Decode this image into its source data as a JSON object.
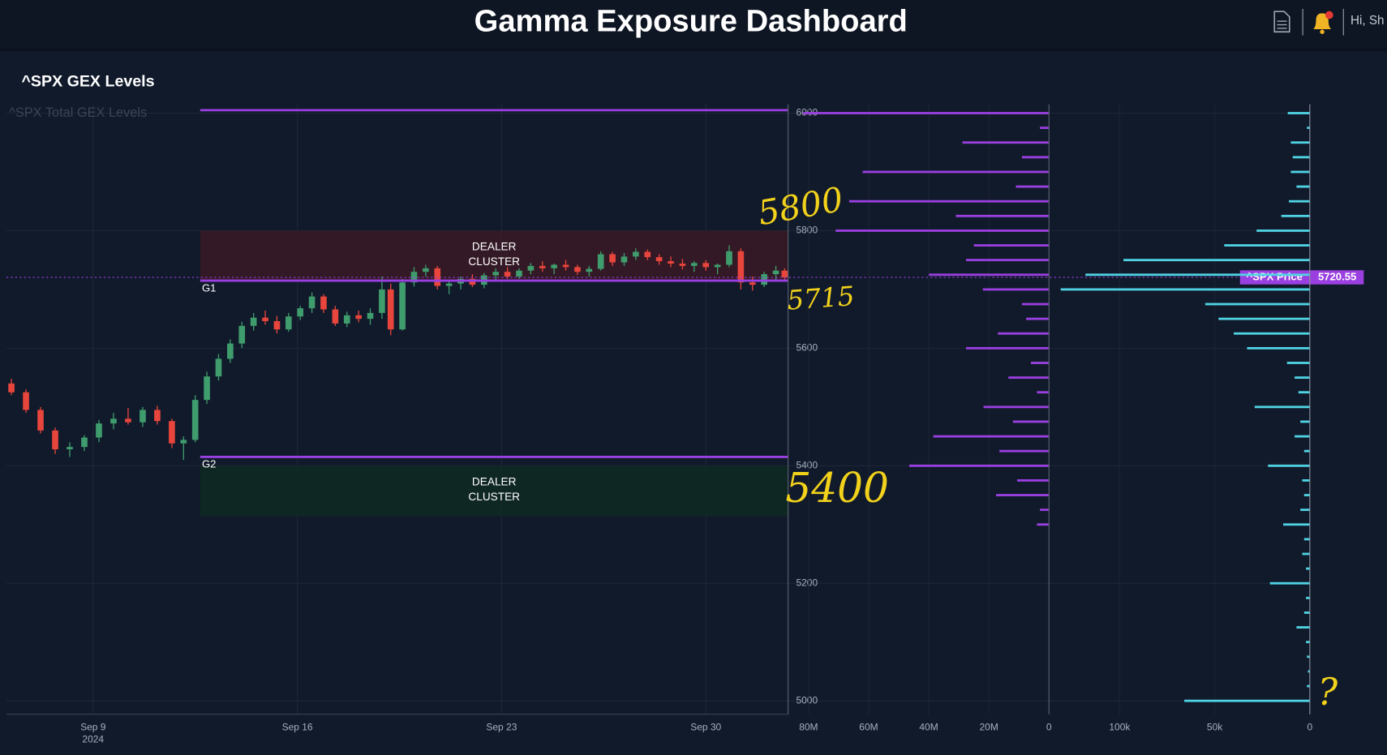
{
  "header": {
    "title": "Gamma Exposure Dashboard",
    "greeting": "Hi, Sh"
  },
  "panel": {
    "title": "^SPX GEX Levels"
  },
  "annotations": [
    "5800",
    "5715",
    "5400",
    "?"
  ],
  "chart_data": [
    {
      "type": "candlestick",
      "subtitle": "^SPX Total GEX Levels",
      "x": [
        6.2,
        6.7,
        7.2,
        7.7,
        8.2,
        8.7,
        9.2,
        9.7,
        10.2,
        10.7,
        11.2,
        11.7,
        12.1,
        12.5,
        12.9,
        13.3,
        13.7,
        14.1,
        14.5,
        14.9,
        15.3,
        15.7,
        16.1,
        16.5,
        16.9,
        17.3,
        17.7,
        18.1,
        18.5,
        18.9,
        19.2,
        19.6,
        20.0,
        20.4,
        20.8,
        21.2,
        21.6,
        22.0,
        22.4,
        22.8,
        23.2,
        23.6,
        24.0,
        24.4,
        24.8,
        25.2,
        25.6,
        26.0,
        26.4,
        26.8,
        27.2,
        27.6,
        28.0,
        28.4,
        28.8,
        29.2,
        29.6,
        30.0,
        30.4,
        30.8,
        31.2,
        31.6,
        32.0,
        32.4,
        32.7
      ],
      "open": [
        5540,
        5525,
        5495,
        5460,
        5428,
        5432,
        5448,
        5472,
        5480,
        5474,
        5495,
        5476,
        5438,
        5444,
        5512,
        5552,
        5582,
        5608,
        5638,
        5652,
        5646,
        5632,
        5654,
        5668,
        5688,
        5666,
        5642,
        5656,
        5650,
        5660,
        5700,
        5632,
        5712,
        5730,
        5736,
        5706,
        5710,
        5718,
        5708,
        5724,
        5730,
        5722,
        5732,
        5740,
        5736,
        5742,
        5738,
        5730,
        5735,
        5760,
        5746,
        5756,
        5764,
        5755,
        5748,
        5744,
        5740,
        5745,
        5738,
        5742,
        5765,
        5712,
        5708,
        5726,
        5732
      ],
      "high": [
        5548,
        5530,
        5500,
        5465,
        5440,
        5452,
        5478,
        5490,
        5498,
        5500,
        5502,
        5480,
        5450,
        5520,
        5560,
        5590,
        5615,
        5645,
        5660,
        5664,
        5655,
        5660,
        5672,
        5695,
        5692,
        5672,
        5662,
        5664,
        5668,
        5722,
        5710,
        5718,
        5738,
        5742,
        5740,
        5716,
        5722,
        5726,
        5728,
        5736,
        5738,
        5736,
        5745,
        5748,
        5744,
        5750,
        5742,
        5740,
        5765,
        5764,
        5762,
        5770,
        5768,
        5760,
        5756,
        5752,
        5748,
        5750,
        5744,
        5775,
        5770,
        5722,
        5730,
        5740,
        5736
      ],
      "low": [
        5520,
        5490,
        5455,
        5420,
        5415,
        5425,
        5440,
        5462,
        5470,
        5466,
        5470,
        5430,
        5410,
        5440,
        5505,
        5545,
        5575,
        5600,
        5630,
        5640,
        5625,
        5628,
        5648,
        5660,
        5660,
        5638,
        5636,
        5644,
        5640,
        5650,
        5622,
        5630,
        5705,
        5722,
        5700,
        5692,
        5700,
        5704,
        5702,
        5716,
        5718,
        5718,
        5726,
        5730,
        5726,
        5732,
        5725,
        5722,
        5732,
        5740,
        5740,
        5750,
        5750,
        5742,
        5738,
        5734,
        5730,
        5732,
        5726,
        5738,
        5700,
        5698,
        5704,
        5716,
        5716
      ],
      "close": [
        5525,
        5495,
        5460,
        5428,
        5432,
        5448,
        5472,
        5480,
        5474,
        5495,
        5476,
        5438,
        5444,
        5512,
        5552,
        5582,
        5608,
        5638,
        5652,
        5646,
        5632,
        5654,
        5668,
        5688,
        5666,
        5642,
        5656,
        5650,
        5660,
        5700,
        5632,
        5712,
        5730,
        5736,
        5706,
        5710,
        5718,
        5708,
        5724,
        5730,
        5722,
        5732,
        5740,
        5736,
        5742,
        5738,
        5730,
        5735,
        5760,
        5746,
        5756,
        5764,
        5755,
        5748,
        5744,
        5740,
        5745,
        5738,
        5742,
        5765,
        5712,
        5708,
        5726,
        5732,
        5720.55
      ],
      "up_color": "#3f9c6d",
      "down_color": "#e8453c",
      "xlim": [
        6.03,
        32.82
      ],
      "xticks": [
        {
          "value": 9,
          "label": "Sep 9"
        },
        {
          "value": 16,
          "label": "Sep 16"
        },
        {
          "value": 23,
          "label": "Sep 23"
        },
        {
          "value": 30,
          "label": "Sep 30"
        }
      ],
      "x_year": "2024",
      "ylim": [
        4977,
        6015
      ],
      "yticks": [
        5000,
        5200,
        5400,
        5600,
        5800,
        6000
      ],
      "grid": true,
      "levels": [
        {
          "value": 6005,
          "color": "#9a3fe0"
        },
        {
          "name": "G1",
          "value": 5715,
          "color": "#9a3fe0"
        },
        {
          "name": "G2",
          "value": 5415,
          "color": "#9a3fe0"
        }
      ],
      "level_start": 12.67,
      "zones": [
        {
          "label": "DEALER CLUSTER",
          "from": 5715,
          "to": 5800,
          "color": "#3a1a24"
        },
        {
          "label": "DEALER CLUSTER",
          "from": 5314,
          "to": 5400,
          "color": "#0f2a22"
        }
      ],
      "price": 5720.55,
      "price_label": "^SPX Price",
      "price_color": "#9a3fe0"
    },
    {
      "type": "hbar",
      "color": "#9a3fe0",
      "y": [
        6000,
        5975,
        5950,
        5925,
        5900,
        5875,
        5850,
        5825,
        5800,
        5775,
        5750,
        5725,
        5700,
        5675,
        5650,
        5625,
        5600,
        5575,
        5550,
        5525,
        5500,
        5475,
        5450,
        5425,
        5400,
        5375,
        5350,
        5325,
        5300
      ],
      "values": [
        81800000,
        3000000,
        28800000,
        9000000,
        62000000,
        11000000,
        66500000,
        31000000,
        71000000,
        25000000,
        27600000,
        40000000,
        22000000,
        9000000,
        7600000,
        17000000,
        27600000,
        6000000,
        13500000,
        4000000,
        21800000,
        12000000,
        38500000,
        16500000,
        46500000,
        10600000,
        17600000,
        3000000,
        4000000
      ],
      "xlim": [
        82400000,
        0
      ],
      "xticks": [
        {
          "value": 80000000,
          "label": "80M"
        },
        {
          "value": 60000000,
          "label": "60M"
        },
        {
          "value": 40000000,
          "label": "40M"
        },
        {
          "value": 20000000,
          "label": "20M"
        },
        0
      ]
    },
    {
      "type": "hbar",
      "color": "#4fd3e3",
      "y": [
        6000,
        5975,
        5950,
        5925,
        5900,
        5875,
        5850,
        5825,
        5800,
        5775,
        5750,
        5725,
        5700,
        5675,
        5650,
        5625,
        5600,
        5575,
        5550,
        5525,
        5500,
        5475,
        5450,
        5425,
        5400,
        5375,
        5350,
        5325,
        5300,
        5275,
        5250,
        5225,
        5200,
        5175,
        5150,
        5125,
        5100,
        5075,
        5050,
        5025,
        5000
      ],
      "values": [
        11600,
        1500,
        10000,
        9000,
        10000,
        7000,
        11000,
        15000,
        28000,
        45000,
        98000,
        118000,
        131000,
        55000,
        48000,
        40000,
        33000,
        12000,
        8000,
        6000,
        29000,
        5000,
        8000,
        3000,
        22000,
        4000,
        3000,
        5000,
        14000,
        3000,
        4000,
        2000,
        21000,
        2000,
        3000,
        7000,
        2000,
        1500,
        1000,
        1500,
        66000
      ],
      "xlim": [
        135300,
        0
      ],
      "xticks": [
        {
          "value": 100000,
          "label": "100k"
        },
        {
          "value": 50000,
          "label": "50k"
        },
        0
      ]
    }
  ]
}
